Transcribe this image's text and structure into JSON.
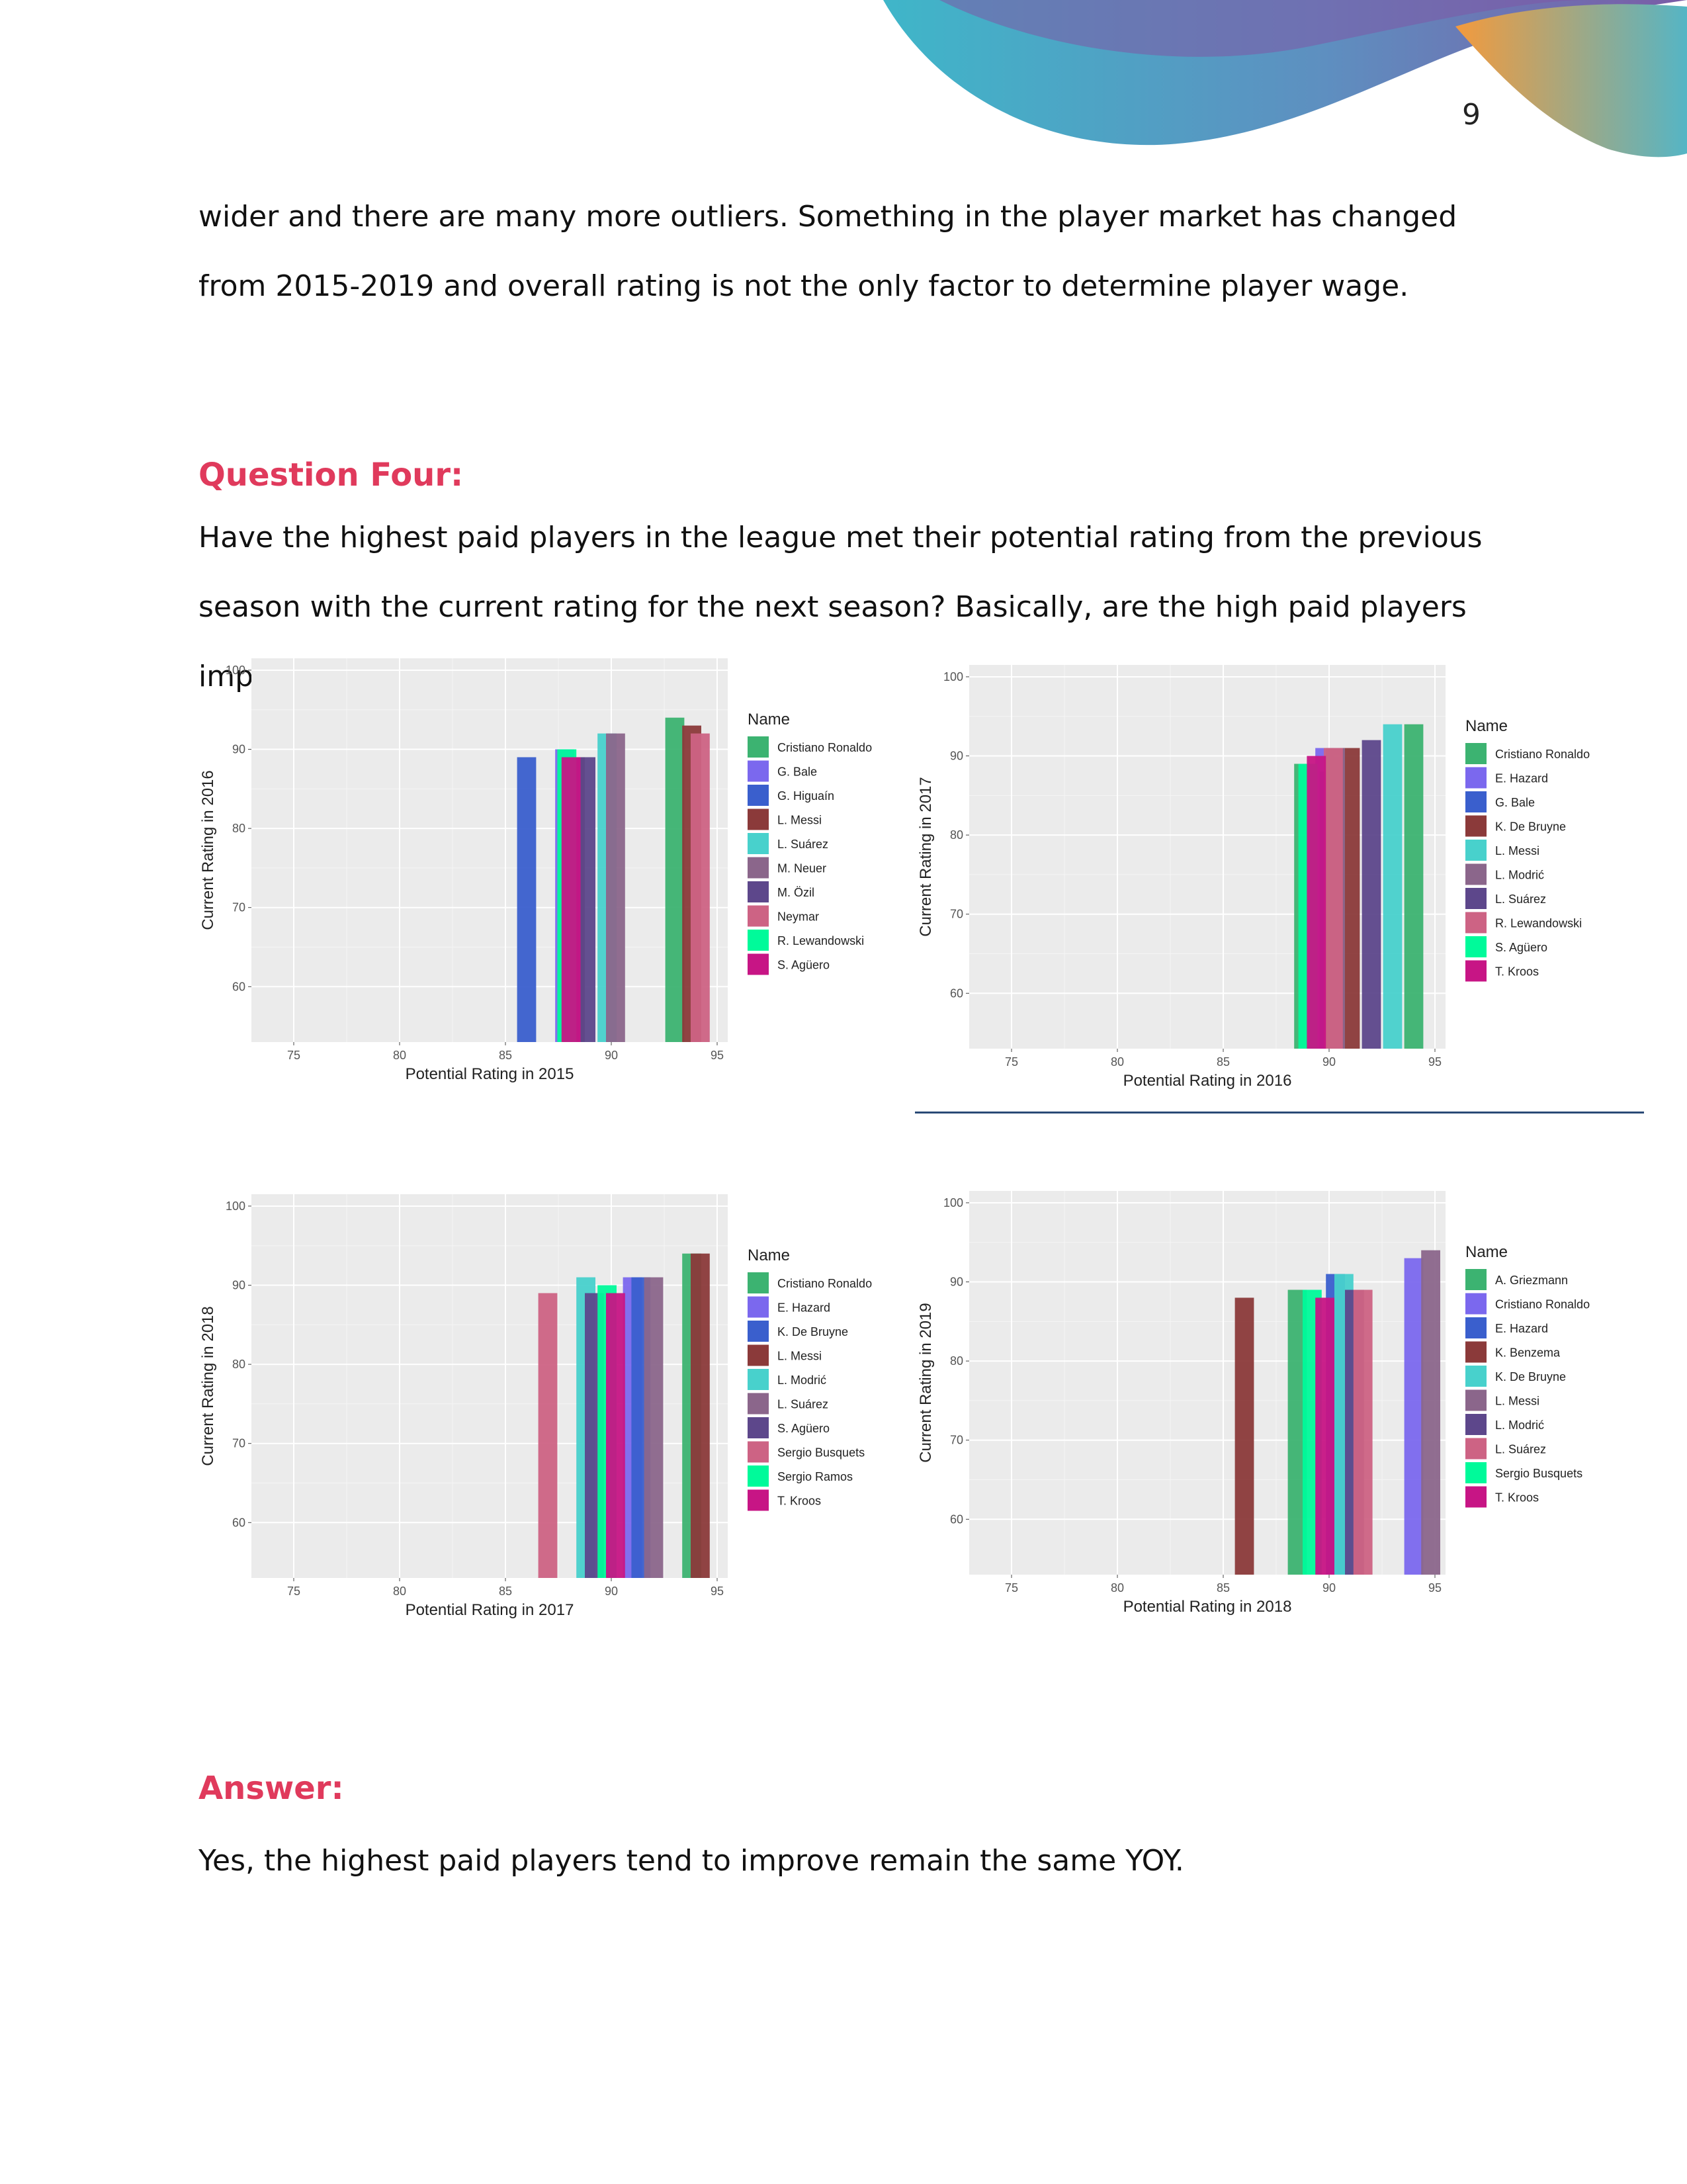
{
  "page_number": "9",
  "intro_paragraph": "wider and there are many more outliers. Something in the player market has changed from 2015-2019 and overall rating is not the only factor to determine player wage.",
  "question": {
    "heading": "Question Four:",
    "text": "Have the highest paid players in the league met their potential rating from the previous season with the current rating for the next season? Basically, are the high paid players improving YOY?"
  },
  "answer": {
    "heading": "Answer:",
    "text": "Yes, the highest paid players tend to improve remain the same YOY."
  },
  "chart_data": [
    {
      "type": "bar",
      "xlabel": "Potential Rating in 2015",
      "ylabel": "Current Rating in 2016",
      "xlim": [
        73,
        95.5
      ],
      "ylim": [
        53,
        101.5
      ],
      "xticks": [
        75,
        80,
        85,
        90,
        95
      ],
      "yticks": [
        60,
        70,
        80,
        90,
        100
      ],
      "bar_width": 0.9,
      "grid": true,
      "legend_title": "Name",
      "legend_position": "right",
      "series": [
        {
          "name": "Cristiano Ronaldo",
          "color": "#3cb371",
          "points": [
            {
              "x": 93,
              "y": 94
            }
          ]
        },
        {
          "name": "G. Bale",
          "color": "#7b68ee",
          "points": [
            {
              "x": 87.8,
              "y": 90
            }
          ]
        },
        {
          "name": "G. Higuaín",
          "color": "#3a5fcd",
          "points": [
            {
              "x": 86,
              "y": 89
            }
          ]
        },
        {
          "name": "L. Messi",
          "color": "#8b3a3a",
          "points": [
            {
              "x": 88.3,
              "y": 89
            },
            {
              "x": 93.8,
              "y": 93
            }
          ]
        },
        {
          "name": "L. Suárez",
          "color": "#48d1cc",
          "points": [
            {
              "x": 89.8,
              "y": 92
            }
          ]
        },
        {
          "name": "M. Neuer",
          "color": "#8b668b",
          "points": [
            {
              "x": 90.2,
              "y": 92
            }
          ]
        },
        {
          "name": "M. Özil",
          "color": "#5d478b",
          "points": [
            {
              "x": 88.8,
              "y": 89
            }
          ]
        },
        {
          "name": "Neymar",
          "color": "#cd6384",
          "points": [
            {
              "x": 94.2,
              "y": 92
            }
          ]
        },
        {
          "name": "R. Lewandowski",
          "color": "#00fa9a",
          "points": [
            {
              "x": 87.9,
              "y": 90
            }
          ]
        },
        {
          "name": "S. Agüero",
          "color": "#c71585",
          "points": [
            {
              "x": 88.1,
              "y": 89
            }
          ]
        }
      ]
    },
    {
      "type": "bar",
      "xlabel": "Potential Rating in 2016",
      "ylabel": "Current Rating in 2017",
      "xlim": [
        73,
        95.5
      ],
      "ylim": [
        53,
        101.5
      ],
      "xticks": [
        75,
        80,
        85,
        90,
        95
      ],
      "yticks": [
        60,
        70,
        80,
        90,
        100
      ],
      "bar_width": 0.9,
      "grid": true,
      "legend_title": "Name",
      "legend_position": "right",
      "series": [
        {
          "name": "Cristiano Ronaldo",
          "color": "#3cb371",
          "points": [
            {
              "x": 94,
              "y": 94
            },
            {
              "x": 88.8,
              "y": 89
            }
          ]
        },
        {
          "name": "E. Hazard",
          "color": "#7b68ee",
          "points": [
            {
              "x": 89.8,
              "y": 91
            }
          ]
        },
        {
          "name": "G. Bale",
          "color": "#3a5fcd",
          "points": [
            {
              "x": 90,
              "y": 88
            }
          ]
        },
        {
          "name": "K. De Bruyne",
          "color": "#8b3a3a",
          "points": [
            {
              "x": 91,
              "y": 91
            }
          ]
        },
        {
          "name": "L. Messi",
          "color": "#48d1cc",
          "points": [
            {
              "x": 93,
              "y": 94
            }
          ]
        },
        {
          "name": "L. Modrić",
          "color": "#8b668b",
          "points": [
            {
              "x": 90.3,
              "y": 91
            }
          ]
        },
        {
          "name": "L. Suárez",
          "color": "#5d478b",
          "points": [
            {
              "x": 92,
              "y": 92
            }
          ]
        },
        {
          "name": "R. Lewandowski",
          "color": "#cd6384",
          "points": [
            {
              "x": 90.2,
              "y": 91
            }
          ]
        },
        {
          "name": "S. Agüero",
          "color": "#00fa9a",
          "points": [
            {
              "x": 89,
              "y": 89
            }
          ]
        },
        {
          "name": "T. Kroos",
          "color": "#c71585",
          "points": [
            {
              "x": 89.4,
              "y": 90
            }
          ]
        }
      ]
    },
    {
      "type": "bar",
      "xlabel": "Potential Rating in 2017",
      "ylabel": "Current Rating in 2018",
      "xlim": [
        73,
        95.5
      ],
      "ylim": [
        53,
        101.5
      ],
      "xticks": [
        75,
        80,
        85,
        90,
        95
      ],
      "yticks": [
        60,
        70,
        80,
        90,
        100
      ],
      "bar_width": 0.9,
      "grid": true,
      "legend_title": "Name",
      "legend_position": "right",
      "series": [
        {
          "name": "Cristiano Ronaldo",
          "color": "#3cb371",
          "points": [
            {
              "x": 93.8,
              "y": 94
            }
          ]
        },
        {
          "name": "E. Hazard",
          "color": "#7b68ee",
          "points": [
            {
              "x": 91,
              "y": 91
            }
          ]
        },
        {
          "name": "K. De Bruyne",
          "color": "#3a5fcd",
          "points": [
            {
              "x": 91.4,
              "y": 91
            }
          ]
        },
        {
          "name": "L. Messi",
          "color": "#8b3a3a",
          "points": [
            {
              "x": 94.2,
              "y": 94
            }
          ]
        },
        {
          "name": "L. Modrić",
          "color": "#48d1cc",
          "points": [
            {
              "x": 88.8,
              "y": 91
            }
          ]
        },
        {
          "name": "L. Suárez",
          "color": "#8b668b",
          "points": [
            {
              "x": 92,
              "y": 91
            }
          ]
        },
        {
          "name": "S. Agüero",
          "color": "#5d478b",
          "points": [
            {
              "x": 89.2,
              "y": 89
            }
          ]
        },
        {
          "name": "Sergio Busquets",
          "color": "#cd6384",
          "points": [
            {
              "x": 87,
              "y": 89
            }
          ]
        },
        {
          "name": "Sergio Ramos",
          "color": "#00fa9a",
          "points": [
            {
              "x": 89.8,
              "y": 90
            }
          ]
        },
        {
          "name": "T. Kroos",
          "color": "#c71585",
          "points": [
            {
              "x": 90.2,
              "y": 89
            }
          ]
        }
      ]
    },
    {
      "type": "bar",
      "xlabel": "Potential Rating in 2018",
      "ylabel": "Current Rating in 2019",
      "xlim": [
        73,
        95.5
      ],
      "ylim": [
        53,
        101.5
      ],
      "xticks": [
        75,
        80,
        85,
        90,
        95
      ],
      "yticks": [
        60,
        70,
        80,
        90,
        100
      ],
      "bar_width": 0.9,
      "grid": true,
      "legend_title": "Name",
      "legend_position": "right",
      "series": [
        {
          "name": "A. Griezmann",
          "color": "#3cb371",
          "points": [
            {
              "x": 88.5,
              "y": 89
            }
          ]
        },
        {
          "name": "Cristiano Ronaldo",
          "color": "#7b68ee",
          "points": [
            {
              "x": 94,
              "y": 93
            }
          ]
        },
        {
          "name": "E. Hazard",
          "color": "#3a5fcd",
          "points": [
            {
              "x": 90.3,
              "y": 91
            }
          ]
        },
        {
          "name": "K. Benzema",
          "color": "#8b3a3a",
          "points": [
            {
              "x": 86,
              "y": 88
            }
          ]
        },
        {
          "name": "K. De Bruyne",
          "color": "#48d1cc",
          "points": [
            {
              "x": 90.7,
              "y": 91
            }
          ]
        },
        {
          "name": "L. Messi",
          "color": "#8b668b",
          "points": [
            {
              "x": 94.8,
              "y": 94
            }
          ]
        },
        {
          "name": "L. Modrić",
          "color": "#5d478b",
          "points": [
            {
              "x": 91.2,
              "y": 89
            }
          ]
        },
        {
          "name": "L. Suárez",
          "color": "#cd6384",
          "points": [
            {
              "x": 91.6,
              "y": 89
            }
          ]
        },
        {
          "name": "Sergio Busquets",
          "color": "#00fa9a",
          "points": [
            {
              "x": 89.2,
              "y": 89
            }
          ]
        },
        {
          "name": "T. Kroos",
          "color": "#c71585",
          "points": [
            {
              "x": 89.8,
              "y": 88
            }
          ]
        }
      ]
    }
  ]
}
